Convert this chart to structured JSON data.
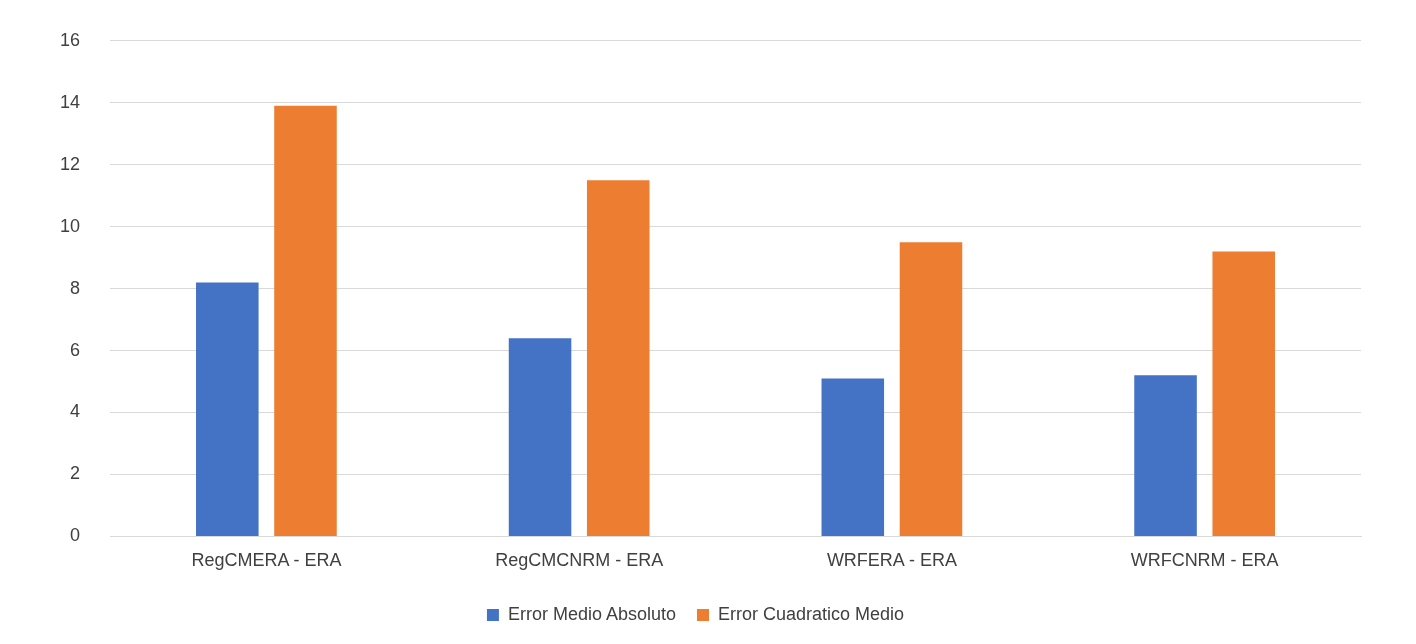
{
  "chart_data": {
    "type": "bar",
    "categories": [
      "RegCMERA - ERA",
      "RegCMCNRM - ERA",
      "WRFERA - ERA",
      "WRFCNRM - ERA"
    ],
    "series": [
      {
        "name": "Error Medio Absoluto",
        "color": "#4472c4",
        "values": [
          8.2,
          6.4,
          5.1,
          5.2
        ]
      },
      {
        "name": "Error Cuadratico Medio",
        "color": "#ed7d31",
        "values": [
          13.9,
          11.5,
          9.5,
          9.2
        ]
      }
    ],
    "ylim": [
      0,
      16
    ],
    "yticks": [
      0,
      2,
      4,
      6,
      8,
      10,
      12,
      14,
      16
    ],
    "grid": "y",
    "legend": "bottom"
  }
}
